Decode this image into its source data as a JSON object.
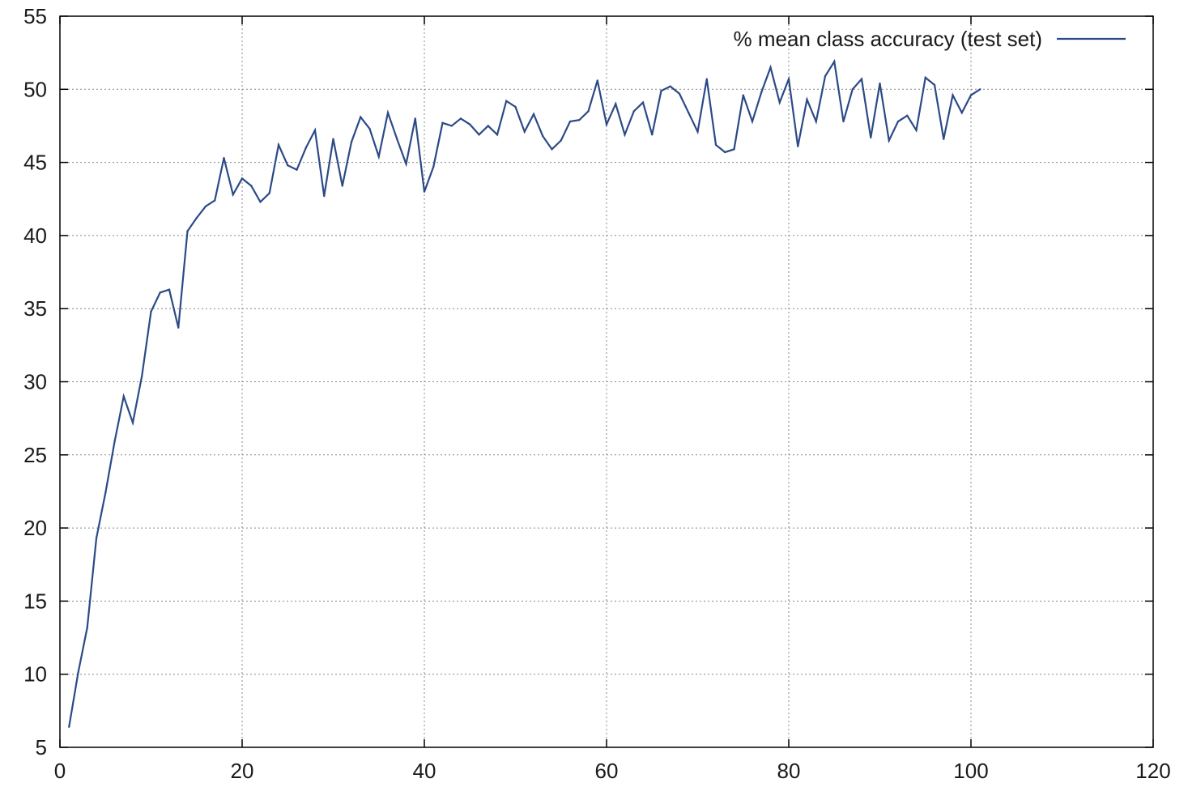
{
  "chart_data": {
    "type": "line",
    "title": "",
    "xlabel": "",
    "ylabel": "",
    "xlim": [
      0,
      120
    ],
    "ylim": [
      5,
      55
    ],
    "x_ticks": [
      0,
      20,
      40,
      60,
      80,
      100,
      120
    ],
    "y_ticks": [
      5,
      10,
      15,
      20,
      25,
      30,
      35,
      40,
      45,
      50,
      55
    ],
    "grid": true,
    "legend_position": "top-right",
    "series": [
      {
        "name": "% mean class accuracy (test set)",
        "color": "#2b4a86",
        "x": [
          1,
          2,
          3,
          4,
          5,
          6,
          7,
          8,
          9,
          10,
          11,
          12,
          13,
          14,
          15,
          16,
          17,
          18,
          19,
          20,
          21,
          22,
          23,
          24,
          25,
          26,
          27,
          28,
          29,
          30,
          31,
          32,
          33,
          34,
          35,
          36,
          37,
          38,
          39,
          40,
          41,
          42,
          43,
          44,
          45,
          46,
          47,
          48,
          49,
          50,
          51,
          52,
          53,
          54,
          55,
          56,
          57,
          58,
          59,
          60,
          61,
          62,
          63,
          64,
          65,
          66,
          67,
          68,
          69,
          70,
          71,
          72,
          73,
          74,
          75,
          76,
          77,
          78,
          79,
          80,
          81,
          82,
          83,
          84,
          85,
          86,
          87,
          88,
          89,
          90,
          91,
          92,
          93,
          94,
          95,
          96,
          97,
          98,
          99,
          100,
          101
        ],
        "values": [
          6.4,
          10.1,
          13.2,
          19.3,
          22.4,
          25.9,
          29.0,
          27.2,
          30.4,
          34.8,
          36.1,
          36.3,
          33.7,
          40.3,
          41.2,
          42.0,
          42.4,
          45.3,
          42.8,
          43.9,
          43.4,
          42.3,
          42.9,
          46.2,
          44.8,
          44.5,
          46.0,
          47.2,
          42.7,
          46.6,
          43.4,
          46.4,
          48.1,
          47.3,
          45.4,
          48.4,
          46.6,
          44.9,
          48.0,
          43.0,
          44.7,
          47.7,
          47.5,
          48.0,
          47.6,
          46.9,
          47.5,
          46.9,
          49.2,
          48.8,
          47.1,
          48.3,
          46.8,
          45.9,
          46.5,
          47.8,
          47.9,
          48.5,
          50.6,
          47.6,
          49.0,
          46.9,
          48.5,
          49.1,
          46.9,
          49.9,
          50.2,
          49.7,
          48.4,
          47.1,
          50.7,
          46.2,
          45.7,
          45.9,
          49.6,
          47.8,
          49.8,
          51.5,
          49.1,
          50.7,
          46.1,
          49.3,
          47.8,
          50.9,
          51.9,
          47.8,
          50.0,
          50.7,
          46.7,
          50.4,
          46.5,
          47.8,
          48.2,
          47.2,
          50.8,
          50.3,
          46.6,
          49.6,
          48.4,
          49.6,
          50.0
        ]
      }
    ]
  }
}
